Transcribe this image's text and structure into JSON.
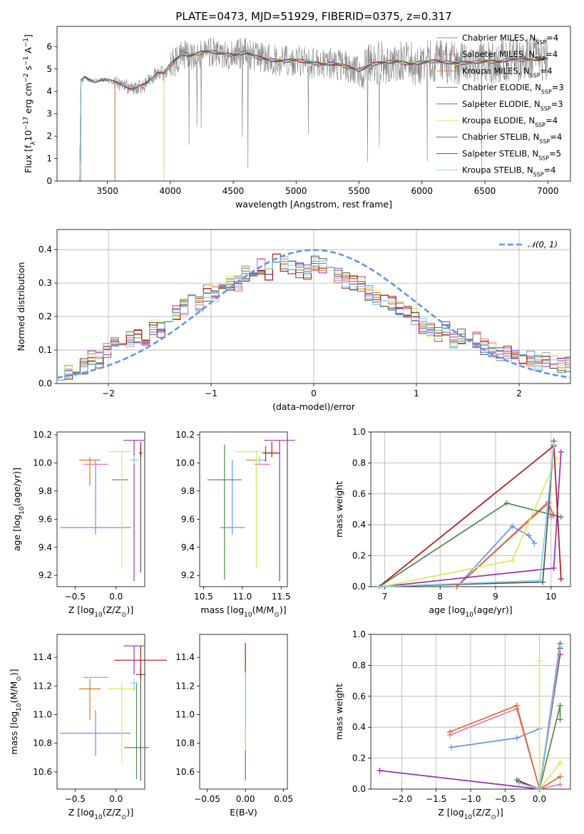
{
  "figure_title": "PLATE=0473, MJD=51929, FIBERID=0375, z=0.317",
  "colors": {
    "Chabrier MILES": "#6495ed",
    "Salpeter MILES": "#e377c2",
    "Kroupa MILES": "#e0701f",
    "Chabrier ELODIE": "#4f8a4f",
    "Salpeter ELODIE": "#9b30b5",
    "Kroupa ELODIE": "#d7ec5a",
    "Chabrier STELIB": "#555555",
    "Salpeter STELIB": "#b01818",
    "Kroupa STELIB": "#7fd2e6",
    "data": "#808080"
  },
  "chart_data": [
    {
      "id": "spectrum",
      "type": "line",
      "xlabel": "wavelength [Angstrom, rest frame]",
      "ylabel_parts": {
        "pre": "Flux [f",
        "lambda": "λ",
        "mid": "10",
        "exp1": "−17",
        "unit": " erg cm",
        "exp2": "−2",
        "s": " s",
        "exp3": "−1",
        "a": " A",
        "exp4": "−1",
        "end": "]"
      },
      "xlim": [
        3100,
        7180
      ],
      "ylim": [
        0,
        6.9
      ],
      "xticks": [
        3500,
        4000,
        4500,
        5000,
        5500,
        6000,
        6500,
        7000
      ],
      "yticks": [
        0,
        1,
        2,
        3,
        4,
        5,
        6
      ],
      "model_x": [
        3260,
        3290,
        3320,
        3360,
        3400,
        3450,
        3500,
        3550,
        3600,
        3650,
        3700,
        3750,
        3800,
        3850,
        3900,
        3950,
        4000,
        4050,
        4100,
        4150,
        4200,
        4300,
        4400,
        4500,
        4600,
        4700,
        4800,
        4900,
        5000,
        5100,
        5200,
        5300,
        5400,
        5500,
        5600,
        5700,
        5800,
        5900,
        6000,
        6100,
        6200,
        6300,
        6400,
        6500,
        6600,
        6700,
        6800,
        6900,
        7000
      ],
      "model_y": [
        0,
        4.45,
        4.6,
        4.5,
        4.45,
        4.55,
        4.5,
        4.4,
        4.35,
        4.25,
        4.1,
        4.2,
        4.3,
        4.6,
        4.9,
        4.8,
        5.15,
        5.45,
        5.7,
        5.6,
        5.65,
        5.8,
        5.7,
        5.6,
        5.75,
        5.5,
        5.4,
        5.35,
        5.4,
        5.3,
        5.2,
        5.25,
        5.1,
        4.95,
        5.2,
        5.3,
        5.35,
        5.2,
        5.3,
        5.35,
        5.3,
        5.25,
        5.3,
        5.35,
        5.3,
        5.45,
        5.4,
        5.45,
        5.45
      ],
      "series": [
        {
          "name": "Chabrier MILES",
          "n_ssp": "4"
        },
        {
          "name": "Salpeter MILES",
          "n_ssp": "4"
        },
        {
          "name": "Kroupa MILES",
          "n_ssp": "4"
        },
        {
          "name": "Chabrier ELODIE",
          "n_ssp": "3"
        },
        {
          "name": "Salpeter ELODIE",
          "n_ssp": "3"
        },
        {
          "name": "Kroupa ELODIE",
          "n_ssp": "4"
        },
        {
          "name": "Chabrier STELIB",
          "n_ssp": "4"
        },
        {
          "name": "Salpeter STELIB",
          "n_ssp": "5"
        },
        {
          "name": "Kroupa STELIB",
          "n_ssp": "4"
        }
      ],
      "legend_prefix": "N",
      "legend_sub": "SSP",
      "legend_loc": "upper right"
    },
    {
      "id": "residuals",
      "type": "area",
      "xlabel": "(data-model)/error",
      "ylabel": "Normed distribution",
      "xlim": [
        -2.5,
        2.5
      ],
      "ylim": [
        0,
        0.46
      ],
      "xticks": [
        -2,
        -1,
        0,
        1,
        2
      ],
      "xtick_labels": [
        "−2",
        "−1",
        "0",
        "1",
        "2"
      ],
      "yticks": [
        0.0,
        0.1,
        0.2,
        0.3,
        0.4
      ],
      "ytick_labels": [
        "0.0",
        "0.1",
        "0.2",
        "0.3",
        "0.4"
      ],
      "grid": true,
      "legend": "𝒩(0, 1)",
      "legend_loc": "upper right",
      "normal_mean": 0,
      "normal_sigma": 1,
      "bin_width": 0.1,
      "bin_start": -2.5,
      "base_hist": [
        0.035,
        0.03,
        0.045,
        0.05,
        0.08,
        0.07,
        0.1,
        0.12,
        0.1,
        0.13,
        0.14,
        0.12,
        0.17,
        0.16,
        0.2,
        0.21,
        0.23,
        0.25,
        0.24,
        0.27,
        0.27,
        0.29,
        0.3,
        0.3,
        0.33,
        0.34,
        0.35,
        0.33,
        0.37,
        0.36,
        0.35,
        0.34,
        0.33,
        0.36,
        0.35,
        0.33,
        0.32,
        0.31,
        0.3,
        0.3,
        0.27,
        0.26,
        0.25,
        0.24,
        0.22,
        0.22,
        0.2,
        0.17,
        0.16,
        0.15,
        0.16,
        0.13,
        0.14,
        0.12,
        0.13,
        0.11,
        0.1,
        0.09,
        0.09,
        0.08,
        0.07,
        0.075,
        0.06,
        0.07,
        0.06,
        0.055,
        0.06,
        0.05
      ]
    },
    {
      "id": "age-Z",
      "type": "scatter",
      "xlabel_parts": {
        "pre": "Z [log",
        "sub": "10",
        "post": "(Z/Z",
        "sun": "⊙",
        "end": ")]"
      },
      "ylabel_parts": {
        "pre": "age  [log",
        "sub": "10",
        "post": "(age/yr)]"
      },
      "xlim": [
        -0.72,
        0.35
      ],
      "ylim": [
        9.12,
        10.22
      ],
      "xticks": [
        -0.5,
        0.0
      ],
      "xtick_labels": [
        "−0.5",
        "0.0"
      ],
      "yticks": [
        9.2,
        9.4,
        9.6,
        9.8,
        10.0,
        10.2
      ],
      "ytick_labels": [
        "9.2",
        "9.4",
        "9.6",
        "9.8",
        "10.0",
        "10.2"
      ],
      "points": [
        {
          "name": "Chabrier MILES",
          "x": -0.25,
          "y": 9.54,
          "xerr": 0.43,
          "yerr": [
            0.05,
            0.48
          ]
        },
        {
          "name": "Salpeter MILES",
          "x": -0.25,
          "y": 9.99,
          "xerr": 0.15,
          "yerr": [
            0.0,
            0.0
          ]
        },
        {
          "name": "Kroupa MILES",
          "x": -0.32,
          "y": 10.02,
          "xerr": 0.13,
          "yerr": [
            0.18,
            0.02
          ]
        },
        {
          "name": "Chabrier ELODIE",
          "x": 0.05,
          "y": 9.88,
          "xerr": 0.1,
          "yerr": [
            0.0,
            0.0
          ]
        },
        {
          "name": "Salpeter ELODIE",
          "x": 0.22,
          "y": 10.16,
          "xerr": 0.13,
          "yerr": [
            1.0,
            0.0
          ]
        },
        {
          "name": "Kroupa ELODIE",
          "x": 0.07,
          "y": 10.08,
          "xerr": 0.17,
          "yerr": [
            0.83,
            0.0
          ]
        },
        {
          "name": "Chabrier STELIB",
          "x": 0.3,
          "y": 10.07,
          "xerr": 0.02,
          "yerr": [
            0.85,
            0.05
          ]
        },
        {
          "name": "Salpeter STELIB",
          "x": 0.3,
          "y": 10.07,
          "xerr": 0.02,
          "yerr": [
            0.03,
            0.08
          ]
        },
        {
          "name": "Kroupa STELIB",
          "x": 0.22,
          "y": 10.02,
          "xerr": 0.05,
          "yerr": [
            0.03,
            0.03
          ]
        }
      ]
    },
    {
      "id": "age-mass",
      "type": "scatter",
      "xlabel_parts": {
        "pre": "mass [log",
        "sub": "10",
        "post": "(M/M",
        "sun": "⊙",
        "end": ")]"
      },
      "xlim": [
        10.45,
        11.58
      ],
      "ylim": [
        9.12,
        10.22
      ],
      "xticks": [
        10.5,
        11.0,
        11.5
      ],
      "xtick_labels": [
        "10.5",
        "11.0",
        "11.5"
      ],
      "yticks": [
        9.2,
        9.4,
        9.6,
        9.8,
        10.0,
        10.2
      ],
      "ytick_labels": [
        "9.2",
        "9.4",
        "9.6",
        "9.8",
        "10.0",
        "10.2"
      ],
      "points": [
        {
          "name": "Chabrier MILES",
          "x": 10.87,
          "y": 9.54,
          "xerr": 0.16,
          "yerr": [
            0.05,
            0.48
          ]
        },
        {
          "name": "Salpeter MILES",
          "x": 11.26,
          "y": 9.99,
          "xerr": 0.1,
          "yerr": [
            0.0,
            0.0
          ]
        },
        {
          "name": "Kroupa MILES",
          "x": 11.18,
          "y": 10.02,
          "xerr": 0.13,
          "yerr": [
            0.18,
            0.02
          ]
        },
        {
          "name": "Chabrier ELODIE",
          "x": 10.77,
          "y": 9.88,
          "xerr": 0.22,
          "yerr": [
            0.71,
            0.25
          ]
        },
        {
          "name": "Salpeter ELODIE",
          "x": 11.48,
          "y": 10.16,
          "xerr": 0.2,
          "yerr": [
            1.0,
            0.0
          ]
        },
        {
          "name": "Kroupa ELODIE",
          "x": 11.18,
          "y": 10.08,
          "xerr": 0.27,
          "yerr": [
            0.83,
            0.0
          ]
        },
        {
          "name": "Chabrier STELIB",
          "x": 11.3,
          "y": 10.07,
          "xerr": 0.04,
          "yerr": [
            0.06,
            0.05
          ]
        },
        {
          "name": "Salpeter STELIB",
          "x": 11.38,
          "y": 10.07,
          "xerr": 0.1,
          "yerr": [
            0.03,
            0.08
          ]
        },
        {
          "name": "Kroupa STELIB",
          "x": 11.22,
          "y": 10.02,
          "xerr": 0.05,
          "yerr": [
            0.03,
            0.03
          ]
        }
      ]
    },
    {
      "id": "weight-age",
      "type": "line",
      "xlabel_parts": {
        "pre": "age  [log",
        "sub": "10",
        "post": "(age/yr)]"
      },
      "ylabel": "mass weight",
      "xlim": [
        6.75,
        10.35
      ],
      "ylim": [
        0,
        1.0
      ],
      "xticks": [
        7,
        8,
        9,
        10
      ],
      "xtick_labels": [
        "7",
        "8",
        "9",
        "10"
      ],
      "yticks": [
        0.0,
        0.2,
        0.4,
        0.6,
        0.8,
        1.0
      ],
      "ytick_labels": [
        "0.0",
        "0.2",
        "0.4",
        "0.6",
        "0.8",
        "1.0"
      ],
      "grid": true,
      "series": [
        {
          "name": "Chabrier MILES",
          "x": [
            8.3,
            9.3,
            9.6,
            9.7
          ],
          "y": [
            0.0,
            0.39,
            0.33,
            0.28
          ]
        },
        {
          "name": "Salpeter MILES",
          "x": [
            8.3,
            9.95,
            10.0
          ],
          "y": [
            0.0,
            0.55,
            0.45
          ]
        },
        {
          "name": "Kroupa MILES",
          "x": [
            8.3,
            9.95,
            10.05
          ],
          "y": [
            0.0,
            0.54,
            0.46
          ]
        },
        {
          "name": "Chabrier ELODIE",
          "x": [
            6.9,
            9.2,
            10.18
          ],
          "y": [
            0.0,
            0.54,
            0.45
          ]
        },
        {
          "name": "Salpeter ELODIE",
          "x": [
            6.95,
            10.05,
            10.18
          ],
          "y": [
            0.0,
            0.12,
            0.87
          ]
        },
        {
          "name": "Kroupa ELODIE",
          "x": [
            6.95,
            9.3,
            10.1
          ],
          "y": [
            0.0,
            0.17,
            0.83
          ]
        },
        {
          "name": "Chabrier STELIB",
          "x": [
            6.9,
            9.85,
            10.05
          ],
          "y": [
            0.0,
            0.03,
            0.94
          ]
        },
        {
          "name": "Salpeter STELIB",
          "x": [
            6.9,
            10.05,
            10.18
          ],
          "y": [
            0.0,
            0.91,
            0.05
          ]
        },
        {
          "name": "Kroupa STELIB",
          "x": [
            6.9,
            9.8,
            10.05
          ],
          "y": [
            0.0,
            0.04,
            0.92
          ]
        }
      ]
    },
    {
      "id": "mass-Z",
      "type": "scatter",
      "xlabel_parts": {
        "pre": "Z [log",
        "sub": "10",
        "post": "(Z/Z",
        "sun": "⊙",
        "end": ")]"
      },
      "ylabel_parts": {
        "pre": "mass [log",
        "sub": "10",
        "post": "(M/M",
        "sun": "⊙",
        "end": ")]"
      },
      "xlim": [
        -0.72,
        0.35
      ],
      "ylim": [
        10.48,
        11.56
      ],
      "xticks": [
        -0.5,
        0.0
      ],
      "xtick_labels": [
        "−0.5",
        "0.0"
      ],
      "yticks": [
        10.6,
        10.8,
        11.0,
        11.2,
        11.4
      ],
      "ytick_labels": [
        "10.6",
        "10.8",
        "11.0",
        "11.2",
        "11.4"
      ],
      "points": [
        {
          "name": "Chabrier MILES",
          "x": -0.25,
          "y": 10.87,
          "xerr": 0.43,
          "yerr": [
            0.16,
            0.16
          ]
        },
        {
          "name": "Salpeter MILES",
          "x": -0.25,
          "y": 11.26,
          "xerr": 0.15,
          "yerr": [
            0.0,
            0.0
          ]
        },
        {
          "name": "Kroupa MILES",
          "x": -0.32,
          "y": 11.18,
          "xerr": 0.13,
          "yerr": [
            0.22,
            0.07
          ]
        },
        {
          "name": "Chabrier ELODIE",
          "x": 0.25,
          "y": 10.77,
          "xerr": 0.15,
          "yerr": [
            0.22,
            0.45
          ]
        },
        {
          "name": "Salpeter ELODIE",
          "x": 0.22,
          "y": 11.48,
          "xerr": 0.13,
          "yerr": [
            0.2,
            0.0
          ]
        },
        {
          "name": "Kroupa ELODIE",
          "x": 0.07,
          "y": 11.18,
          "xerr": 0.17,
          "yerr": [
            0.52,
            0.05
          ]
        },
        {
          "name": "Chabrier STELIB",
          "x": 0.3,
          "y": 11.28,
          "xerr": 0.06,
          "yerr": [
            0.74,
            0.05
          ]
        },
        {
          "name": "Salpeter STELIB",
          "x": 0.3,
          "y": 11.38,
          "xerr": 0.32,
          "yerr": [
            0.12,
            0.1
          ]
        },
        {
          "name": "Kroupa STELIB",
          "x": 0.22,
          "y": 11.22,
          "xerr": 0.05,
          "yerr": [
            0.05,
            0.03
          ]
        }
      ]
    },
    {
      "id": "mass-EBV",
      "type": "scatter",
      "xlabel": "E(B-V)",
      "xlim": [
        -0.06,
        0.055
      ],
      "ylim": [
        10.48,
        11.56
      ],
      "xticks": [
        -0.05,
        0.0,
        0.05
      ],
      "xtick_labels": [
        "−0.05",
        "0.00",
        "0.05"
      ],
      "yticks": [
        10.6,
        10.8,
        11.0,
        11.2,
        11.4
      ],
      "ytick_labels": [
        "10.6",
        "10.8",
        "11.0",
        "11.2",
        "11.4"
      ],
      "points": [
        {
          "name": "Chabrier ELODIE",
          "x": 0,
          "y": 11.0,
          "yerr": [
            0.46,
            0.3
          ]
        },
        {
          "name": "Kroupa ELODIE",
          "x": 0,
          "y": 11.1,
          "yerr": [
            0.35,
            0.3
          ]
        },
        {
          "name": "Salpeter STELIB",
          "x": 0,
          "y": 11.38,
          "yerr": [
            0.1,
            0.12
          ]
        },
        {
          "name": "Kroupa STELIB",
          "x": 0,
          "y": 11.1,
          "yerr": [
            0.2,
            0.2
          ]
        }
      ]
    },
    {
      "id": "weight-Z",
      "type": "line",
      "xlabel_parts": {
        "pre": "Z [log",
        "sub": "10",
        "post": "(Z/Z",
        "sun": "⊙",
        "end": ")]"
      },
      "ylabel": "mass weight",
      "xlim": [
        -2.45,
        0.45
      ],
      "ylim": [
        0,
        1.0
      ],
      "xticks": [
        -2.0,
        -1.5,
        -1.0,
        -0.5,
        0.0
      ],
      "xtick_labels": [
        "−2.0",
        "−1.5",
        "−1.0",
        "−0.5",
        "0.0"
      ],
      "yticks": [
        0.0,
        0.2,
        0.4,
        0.6,
        0.8,
        1.0
      ],
      "ytick_labels": [
        "0.0",
        "0.2",
        "0.4",
        "0.6",
        "0.8",
        "1.0"
      ],
      "grid": true,
      "series": [
        {
          "name": "Chabrier MILES",
          "x": [
            -1.28,
            -0.33,
            0.0
          ],
          "y": [
            0.27,
            0.33,
            0.39
          ]
        },
        {
          "name": "Salpeter MILES",
          "x": [
            -1.3,
            -0.33,
            0.0,
            0.3
          ],
          "y": [
            0.35,
            0.52,
            0.0,
            0.03
          ]
        },
        {
          "name": "Kroupa MILES",
          "x": [
            -1.3,
            -0.33,
            0.0,
            0.3
          ],
          "y": [
            0.37,
            0.54,
            0.0,
            0.08
          ]
        },
        {
          "name": "Chabrier ELODIE",
          "x": [
            -0.33,
            0.0,
            0.3,
            0.3
          ],
          "y": [
            0.06,
            0.0,
            0.54,
            0.45
          ]
        },
        {
          "name": "Salpeter ELODIE",
          "x": [
            -2.32,
            0.0,
            0.3
          ],
          "y": [
            0.12,
            0.0,
            0.87
          ]
        },
        {
          "name": "Kroupa ELODIE",
          "x": [
            0.0,
            0.0,
            0.3
          ],
          "y": [
            0.83,
            0.0,
            0.17
          ]
        },
        {
          "name": "Chabrier STELIB",
          "x": [
            -0.3,
            0.0,
            0.3
          ],
          "y": [
            0.05,
            0.0,
            0.94
          ]
        },
        {
          "name": "Salpeter STELIB",
          "x": [
            -0.3,
            0.0,
            0.3
          ],
          "y": [
            0.05,
            0.0,
            0.91
          ]
        },
        {
          "name": "Kroupa STELIB",
          "x": [
            -0.3,
            0.0,
            0.3
          ],
          "y": [
            0.04,
            0.0,
            0.92
          ]
        }
      ]
    }
  ]
}
